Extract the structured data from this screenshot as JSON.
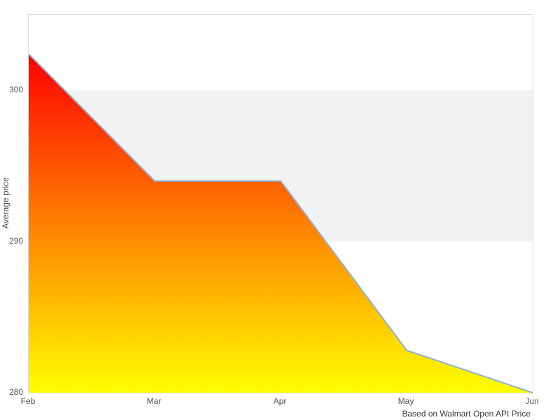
{
  "chart": {
    "y_axis_title": "Average price",
    "caption": "Based on Walmart Open API Price"
  },
  "chart_data": {
    "type": "area",
    "x": [
      "Feb",
      "Mar",
      "Apr",
      "May",
      "Jun"
    ],
    "series": [
      {
        "name": "Average price",
        "values": [
          302.4,
          294,
          294,
          282.8,
          280
        ]
      }
    ],
    "title": "",
    "xlabel": "",
    "ylabel": "Average price",
    "ylim": [
      280,
      305
    ],
    "y_ticks": [
      280,
      290,
      300
    ],
    "shaded_band": {
      "from": 290,
      "to": 300
    },
    "grid": false,
    "legend": "none",
    "caption": "Based on Walmart Open API Price",
    "colors": {
      "area_gradient_top": "#ff0000",
      "area_gradient_bottom": "#ffff00",
      "line": "#8cb2d9",
      "band": "#f2f2f2",
      "plot_border": "#dcdcdc",
      "tick_text": "#555555",
      "caption_text": "#3d3d3d",
      "background": "#ffffff"
    }
  }
}
